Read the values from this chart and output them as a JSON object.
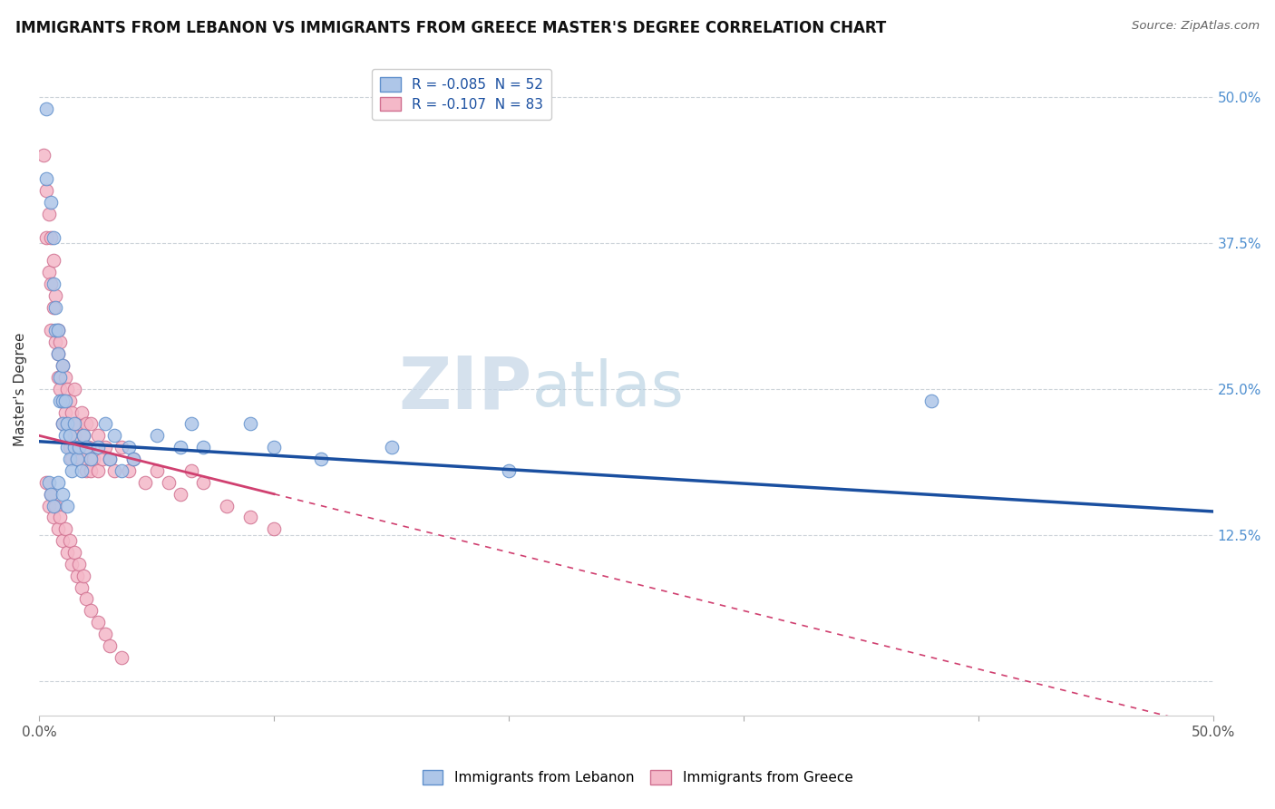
{
  "title": "IMMIGRANTS FROM LEBANON VS IMMIGRANTS FROM GREECE MASTER'S DEGREE CORRELATION CHART",
  "source": "Source: ZipAtlas.com",
  "ylabel": "Master's Degree",
  "xlim": [
    0.0,
    0.5
  ],
  "ylim": [
    -0.03,
    0.53
  ],
  "color_lebanon": "#aec6e8",
  "color_lebanon_edge": "#6090cc",
  "color_greece": "#f4b8c8",
  "color_greece_edge": "#d07090",
  "line_color_lebanon": "#1a4fa0",
  "line_color_greece": "#d04070",
  "legend_r1": "R = -0.085  N = 52",
  "legend_r2": "R = -0.107  N = 83",
  "watermark_zip": "ZIP",
  "watermark_atlas": "atlas",
  "lebanon_x": [
    0.003,
    0.003,
    0.005,
    0.006,
    0.006,
    0.007,
    0.007,
    0.008,
    0.008,
    0.009,
    0.009,
    0.01,
    0.01,
    0.01,
    0.011,
    0.011,
    0.012,
    0.012,
    0.013,
    0.013,
    0.014,
    0.015,
    0.015,
    0.016,
    0.017,
    0.018,
    0.019,
    0.02,
    0.022,
    0.025,
    0.028,
    0.03,
    0.032,
    0.035,
    0.038,
    0.04,
    0.05,
    0.06,
    0.065,
    0.07,
    0.09,
    0.1,
    0.12,
    0.15,
    0.2,
    0.38,
    0.004,
    0.005,
    0.006,
    0.008,
    0.01,
    0.012
  ],
  "lebanon_y": [
    0.49,
    0.43,
    0.41,
    0.38,
    0.34,
    0.32,
    0.3,
    0.28,
    0.3,
    0.26,
    0.24,
    0.27,
    0.24,
    0.22,
    0.21,
    0.24,
    0.22,
    0.2,
    0.21,
    0.19,
    0.18,
    0.22,
    0.2,
    0.19,
    0.2,
    0.18,
    0.21,
    0.2,
    0.19,
    0.2,
    0.22,
    0.19,
    0.21,
    0.18,
    0.2,
    0.19,
    0.21,
    0.2,
    0.22,
    0.2,
    0.22,
    0.2,
    0.19,
    0.2,
    0.18,
    0.24,
    0.17,
    0.16,
    0.15,
    0.17,
    0.16,
    0.15
  ],
  "greece_x": [
    0.002,
    0.003,
    0.003,
    0.004,
    0.004,
    0.005,
    0.005,
    0.005,
    0.006,
    0.006,
    0.007,
    0.007,
    0.008,
    0.008,
    0.008,
    0.009,
    0.009,
    0.01,
    0.01,
    0.01,
    0.011,
    0.011,
    0.012,
    0.012,
    0.013,
    0.013,
    0.014,
    0.014,
    0.015,
    0.015,
    0.016,
    0.016,
    0.017,
    0.018,
    0.018,
    0.019,
    0.02,
    0.02,
    0.021,
    0.022,
    0.022,
    0.023,
    0.025,
    0.025,
    0.027,
    0.028,
    0.03,
    0.032,
    0.035,
    0.038,
    0.04,
    0.045,
    0.05,
    0.055,
    0.06,
    0.065,
    0.07,
    0.08,
    0.09,
    0.1,
    0.003,
    0.004,
    0.005,
    0.006,
    0.007,
    0.008,
    0.009,
    0.01,
    0.011,
    0.012,
    0.013,
    0.014,
    0.015,
    0.016,
    0.017,
    0.018,
    0.019,
    0.02,
    0.022,
    0.025,
    0.028,
    0.03,
    0.035
  ],
  "greece_y": [
    0.45,
    0.42,
    0.38,
    0.4,
    0.35,
    0.38,
    0.34,
    0.3,
    0.36,
    0.32,
    0.33,
    0.29,
    0.3,
    0.26,
    0.28,
    0.29,
    0.25,
    0.27,
    0.24,
    0.22,
    0.26,
    0.23,
    0.25,
    0.22,
    0.24,
    0.2,
    0.23,
    0.19,
    0.25,
    0.21,
    0.22,
    0.19,
    0.2,
    0.23,
    0.19,
    0.21,
    0.22,
    0.18,
    0.2,
    0.22,
    0.18,
    0.19,
    0.21,
    0.18,
    0.19,
    0.2,
    0.19,
    0.18,
    0.2,
    0.18,
    0.19,
    0.17,
    0.18,
    0.17,
    0.16,
    0.18,
    0.17,
    0.15,
    0.14,
    0.13,
    0.17,
    0.15,
    0.16,
    0.14,
    0.15,
    0.13,
    0.14,
    0.12,
    0.13,
    0.11,
    0.12,
    0.1,
    0.11,
    0.09,
    0.1,
    0.08,
    0.09,
    0.07,
    0.06,
    0.05,
    0.04,
    0.03,
    0.02
  ]
}
